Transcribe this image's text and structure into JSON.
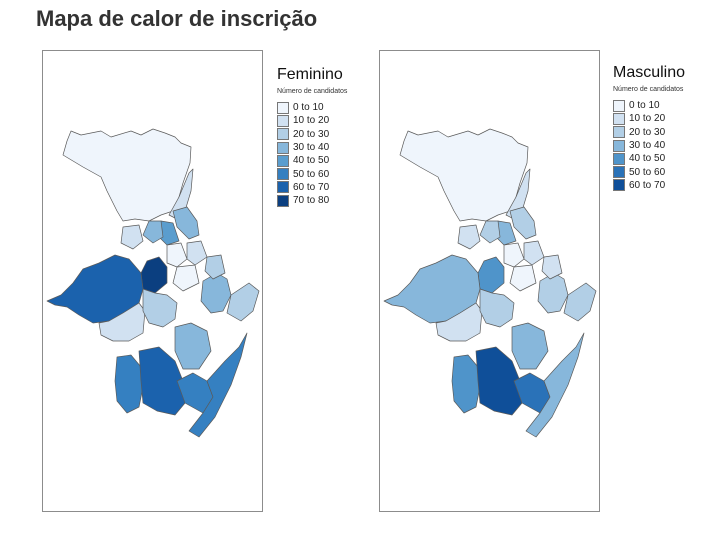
{
  "title": "Mapa de calor de inscrição",
  "panels": [
    {
      "id": "fem",
      "legend_title": "Feminino",
      "legend_subtitle": "Número de candidatos",
      "classes": [
        {
          "label": "0 to 10",
          "color": "#eff5fc"
        },
        {
          "label": "10 to 20",
          "color": "#d1e1f1"
        },
        {
          "label": "20 to 30",
          "color": "#b2cfe6"
        },
        {
          "label": "30 to 40",
          "color": "#87b7db"
        },
        {
          "label": "40 to 50",
          "color": "#5a9dce"
        },
        {
          "label": "50 to 60",
          "color": "#3580c1"
        },
        {
          "label": "60 to 70",
          "color": "#1b62ad"
        },
        {
          "label": "70 to 80",
          "color": "#0b3f80"
        }
      ],
      "regions": {
        "north": 0,
        "northeast_strip": 1,
        "east_upper": 3,
        "center_small_a": 4,
        "center_small_b": 3,
        "center_dark": 7,
        "west_big": 6,
        "middle_band": 1,
        "center_mid": 2,
        "east_mid": 3,
        "coast_upper": 2,
        "south_left": 5,
        "south_center": 6,
        "south_right": 5,
        "south_coast": 5,
        "south_mid": 3,
        "small_1": 0,
        "small_2": 1,
        "small_3": 2,
        "small_4": 0,
        "small_5": 1
      }
    },
    {
      "id": "masc",
      "legend_title": "Masculino",
      "legend_subtitle": "Número de candidatos",
      "classes": [
        {
          "label": "0 to 10",
          "color": "#eff5fc"
        },
        {
          "label": "10 to 20",
          "color": "#d1e1f1"
        },
        {
          "label": "20 to 30",
          "color": "#b2cfe6"
        },
        {
          "label": "30 to 40",
          "color": "#87b7db"
        },
        {
          "label": "40 to 50",
          "color": "#4f94ca"
        },
        {
          "label": "50 to 60",
          "color": "#2a72b8"
        },
        {
          "label": "60 to 70",
          "color": "#0f4f99"
        }
      ],
      "regions": {
        "north": 0,
        "northeast_strip": 1,
        "east_upper": 2,
        "center_small_a": 3,
        "center_small_b": 2,
        "center_dark": 4,
        "west_big": 3,
        "middle_band": 1,
        "center_mid": 2,
        "east_mid": 2,
        "coast_upper": 2,
        "south_left": 4,
        "south_center": 6,
        "south_right": 5,
        "south_coast": 3,
        "south_mid": 3,
        "small_1": 0,
        "small_2": 1,
        "small_3": 1,
        "small_4": 0,
        "small_5": 1
      }
    }
  ]
}
